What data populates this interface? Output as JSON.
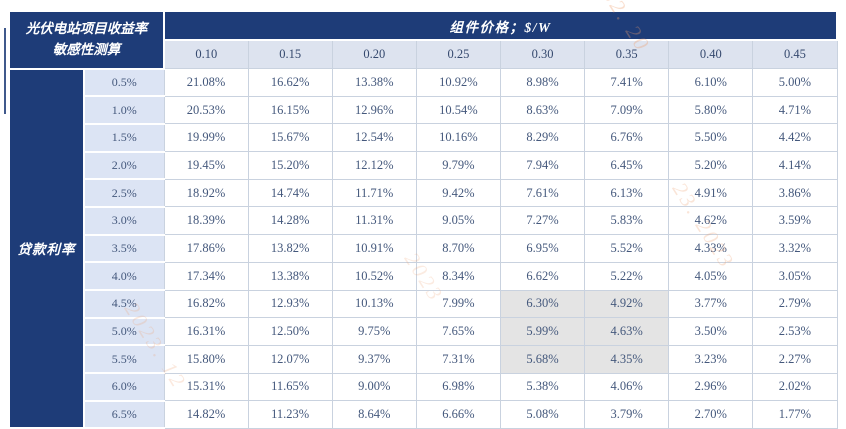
{
  "table": {
    "corner_title_line1": "光伏电站项目收益率",
    "corner_title_line2": "敏感性测算",
    "column_axis_title": "组件价格；$/W",
    "row_axis_label": "贷款利率",
    "col_headers": [
      "0.10",
      "0.15",
      "0.20",
      "0.25",
      "0.30",
      "0.35",
      "0.40",
      "0.45"
    ],
    "row_headers": [
      "0.5%",
      "1.0%",
      "1.5%",
      "2.0%",
      "2.5%",
      "3.0%",
      "3.5%",
      "4.0%",
      "4.5%",
      "5.0%",
      "5.5%",
      "6.0%",
      "6.5%"
    ],
    "rows": [
      [
        "21.08%",
        "16.62%",
        "13.38%",
        "10.92%",
        "8.98%",
        "7.41%",
        "6.10%",
        "5.00%"
      ],
      [
        "20.53%",
        "16.15%",
        "12.96%",
        "10.54%",
        "8.63%",
        "7.09%",
        "5.80%",
        "4.71%"
      ],
      [
        "19.99%",
        "15.67%",
        "12.54%",
        "10.16%",
        "8.29%",
        "6.76%",
        "5.50%",
        "4.42%"
      ],
      [
        "19.45%",
        "15.20%",
        "12.12%",
        "9.79%",
        "7.94%",
        "6.45%",
        "5.20%",
        "4.14%"
      ],
      [
        "18.92%",
        "14.74%",
        "11.71%",
        "9.42%",
        "7.61%",
        "6.13%",
        "4.91%",
        "3.86%"
      ],
      [
        "18.39%",
        "14.28%",
        "11.31%",
        "9.05%",
        "7.27%",
        "5.83%",
        "4.62%",
        "3.59%"
      ],
      [
        "17.86%",
        "13.82%",
        "10.91%",
        "8.70%",
        "6.95%",
        "5.52%",
        "4.33%",
        "3.32%"
      ],
      [
        "17.34%",
        "13.38%",
        "10.52%",
        "8.34%",
        "6.62%",
        "5.22%",
        "4.05%",
        "3.05%"
      ],
      [
        "16.82%",
        "12.93%",
        "10.13%",
        "7.99%",
        "6.30%",
        "4.92%",
        "3.77%",
        "2.79%"
      ],
      [
        "16.31%",
        "12.50%",
        "9.75%",
        "7.65%",
        "5.99%",
        "4.63%",
        "3.50%",
        "2.53%"
      ],
      [
        "15.80%",
        "12.07%",
        "9.37%",
        "7.31%",
        "5.68%",
        "4.35%",
        "3.23%",
        "2.27%"
      ],
      [
        "15.31%",
        "11.65%",
        "9.00%",
        "6.98%",
        "5.38%",
        "4.06%",
        "2.96%",
        "2.02%"
      ],
      [
        "14.82%",
        "11.23%",
        "8.64%",
        "6.66%",
        "5.08%",
        "3.79%",
        "2.70%",
        "1.77%"
      ]
    ],
    "highlight": {
      "row_indices": [
        8,
        9,
        10
      ],
      "col_indices": [
        4,
        5
      ]
    }
  },
  "colors": {
    "header_navy": "#1e3c78",
    "subheader_bg": "#dde3ef",
    "row_label_bg": "#dce4f4",
    "grid_line": "#c9d2df",
    "cell_text": "#44587c",
    "highlight_bg": "#e4e4e4",
    "watermark_orange": "#ef9e6d"
  },
  "watermark": {
    "fragments": [
      "82. 20",
      "23. 2023",
      "2023",
      "2023. 12"
    ]
  }
}
